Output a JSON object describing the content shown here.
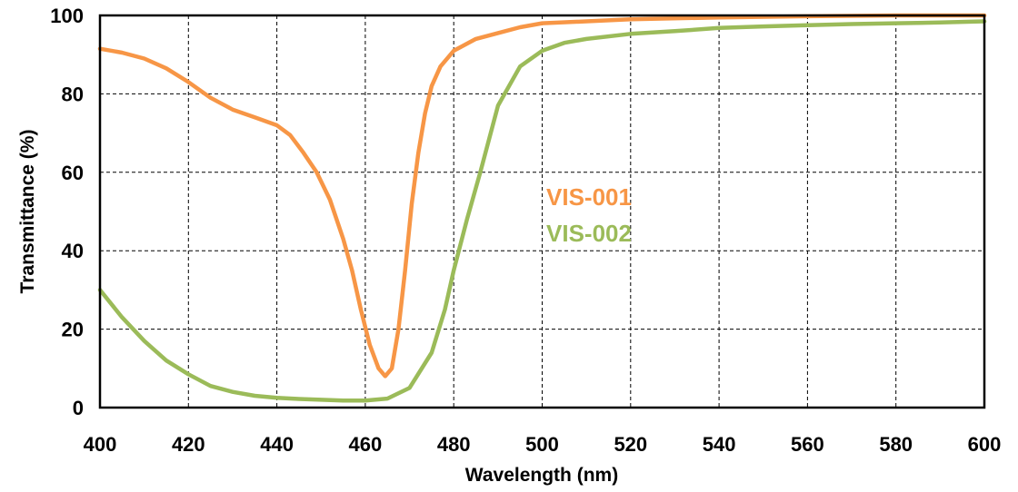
{
  "chart_data": {
    "type": "line",
    "xlabel": "Wavelength (nm)",
    "ylabel": "Transmittance (%)",
    "xlim": [
      400,
      600
    ],
    "ylim": [
      0,
      100
    ],
    "x_ticks": [
      "400",
      "420",
      "440",
      "460",
      "480",
      "500",
      "520",
      "540",
      "560",
      "580",
      "600"
    ],
    "y_ticks": [
      "0",
      "20",
      "40",
      "60",
      "80",
      "100"
    ],
    "grid": true,
    "grid_style": "dashed",
    "legend": "inline-labels",
    "series": [
      {
        "name": "VIS-001",
        "color": "#f79646",
        "points": [
          [
            400,
            91.5
          ],
          [
            405,
            90.5
          ],
          [
            410,
            89
          ],
          [
            415,
            86.5
          ],
          [
            420,
            83
          ],
          [
            425,
            79
          ],
          [
            430,
            76
          ],
          [
            435,
            74
          ],
          [
            440,
            72
          ],
          [
            443,
            69.5
          ],
          [
            446,
            65
          ],
          [
            449,
            60
          ],
          [
            452,
            53
          ],
          [
            455,
            43
          ],
          [
            457,
            35
          ],
          [
            459,
            25
          ],
          [
            461,
            16
          ],
          [
            463,
            10
          ],
          [
            464.5,
            8
          ],
          [
            466,
            10
          ],
          [
            467.5,
            20
          ],
          [
            469,
            35
          ],
          [
            470.5,
            52
          ],
          [
            472,
            65
          ],
          [
            473.5,
            75
          ],
          [
            475,
            82
          ],
          [
            477,
            87
          ],
          [
            480,
            91
          ],
          [
            485,
            94
          ],
          [
            490,
            95.5
          ],
          [
            495,
            97
          ],
          [
            500,
            98
          ],
          [
            510,
            98.5
          ],
          [
            520,
            99
          ],
          [
            540,
            99.5
          ],
          [
            560,
            99.8
          ],
          [
            580,
            100
          ],
          [
            600,
            100
          ]
        ]
      },
      {
        "name": "VIS-002",
        "color": "#9bbb59",
        "points": [
          [
            400,
            30
          ],
          [
            405,
            23
          ],
          [
            410,
            17
          ],
          [
            415,
            12
          ],
          [
            420,
            8.5
          ],
          [
            425,
            5.5
          ],
          [
            430,
            4
          ],
          [
            435,
            3
          ],
          [
            440,
            2.5
          ],
          [
            445,
            2.2
          ],
          [
            450,
            2
          ],
          [
            455,
            1.8
          ],
          [
            460,
            1.8
          ],
          [
            465,
            2.3
          ],
          [
            470,
            5
          ],
          [
            475,
            14
          ],
          [
            478,
            25
          ],
          [
            480,
            35
          ],
          [
            483,
            48
          ],
          [
            486,
            60
          ],
          [
            490,
            77
          ],
          [
            495,
            87
          ],
          [
            500,
            91
          ],
          [
            505,
            93
          ],
          [
            510,
            94
          ],
          [
            520,
            95.3
          ],
          [
            530,
            96
          ],
          [
            540,
            96.8
          ],
          [
            550,
            97.2
          ],
          [
            560,
            97.5
          ],
          [
            570,
            97.8
          ],
          [
            580,
            98
          ],
          [
            590,
            98.2
          ],
          [
            600,
            98.5
          ]
        ]
      }
    ]
  }
}
